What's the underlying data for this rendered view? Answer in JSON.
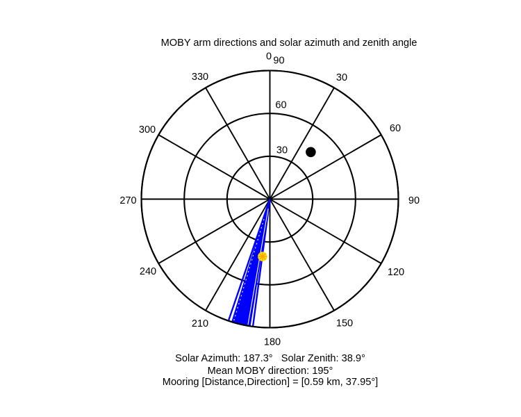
{
  "title": "MOBY arm directions and solar azimuth and zenith angle",
  "footer": {
    "solar_line": "Solar Azimuth: 187.3°   Solar Zenith: 38.9°",
    "mean_line": "Mean MOBY direction: 195°",
    "mooring_line": "Mooring [Distance,Direction] = [0.59 km, 37.95°]"
  },
  "chart_data": {
    "type": "polar",
    "title": "MOBY arm directions and solar azimuth and zenith angle",
    "background": "#FFFFFF",
    "grid_color": "#000000",
    "spoke_step_deg": 30,
    "radial_axis_max": 90,
    "radial_ring_step": 30,
    "azimuth_labels": [
      {
        "angle_deg": 0,
        "label": "0"
      },
      {
        "angle_deg": 30,
        "label": "30"
      },
      {
        "angle_deg": 60,
        "label": "60"
      },
      {
        "angle_deg": 90,
        "label": "90"
      },
      {
        "angle_deg": 120,
        "label": "120"
      },
      {
        "angle_deg": 150,
        "label": "150"
      },
      {
        "angle_deg": 180,
        "label": "180"
      },
      {
        "angle_deg": 210,
        "label": "210"
      },
      {
        "angle_deg": 240,
        "label": "240"
      },
      {
        "angle_deg": 270,
        "label": "270"
      },
      {
        "angle_deg": 300,
        "label": "300"
      },
      {
        "angle_deg": 330,
        "label": "330"
      }
    ],
    "zenith_ring_labels": [
      {
        "radius_value": 30,
        "label": "30"
      },
      {
        "radius_value": 60,
        "label": "60"
      },
      {
        "radius_value": 90,
        "label": "90"
      }
    ],
    "moby_arm_fan": {
      "color": "#0000FF",
      "mean_direction_deg": 195,
      "solid_sector_deg": [
        188.9,
        197.2
      ],
      "extra_lines_deg": [
        187.6,
        198.8
      ],
      "white_gap_lines_deg": [
        189.9,
        196.5
      ]
    },
    "solar_marker": {
      "azimuth_deg": 187.3,
      "zenith_deg": 38.9,
      "plotted_radius_frac": 0.45,
      "disc_color": "#FFE000",
      "ray_color": "#F5A800"
    },
    "mooring_marker": {
      "distance_km": 0.59,
      "direction_deg": 37.95,
      "plotted_azimuth_deg": 41.0,
      "plotted_radius_frac": 0.485,
      "color": "#000000"
    }
  }
}
